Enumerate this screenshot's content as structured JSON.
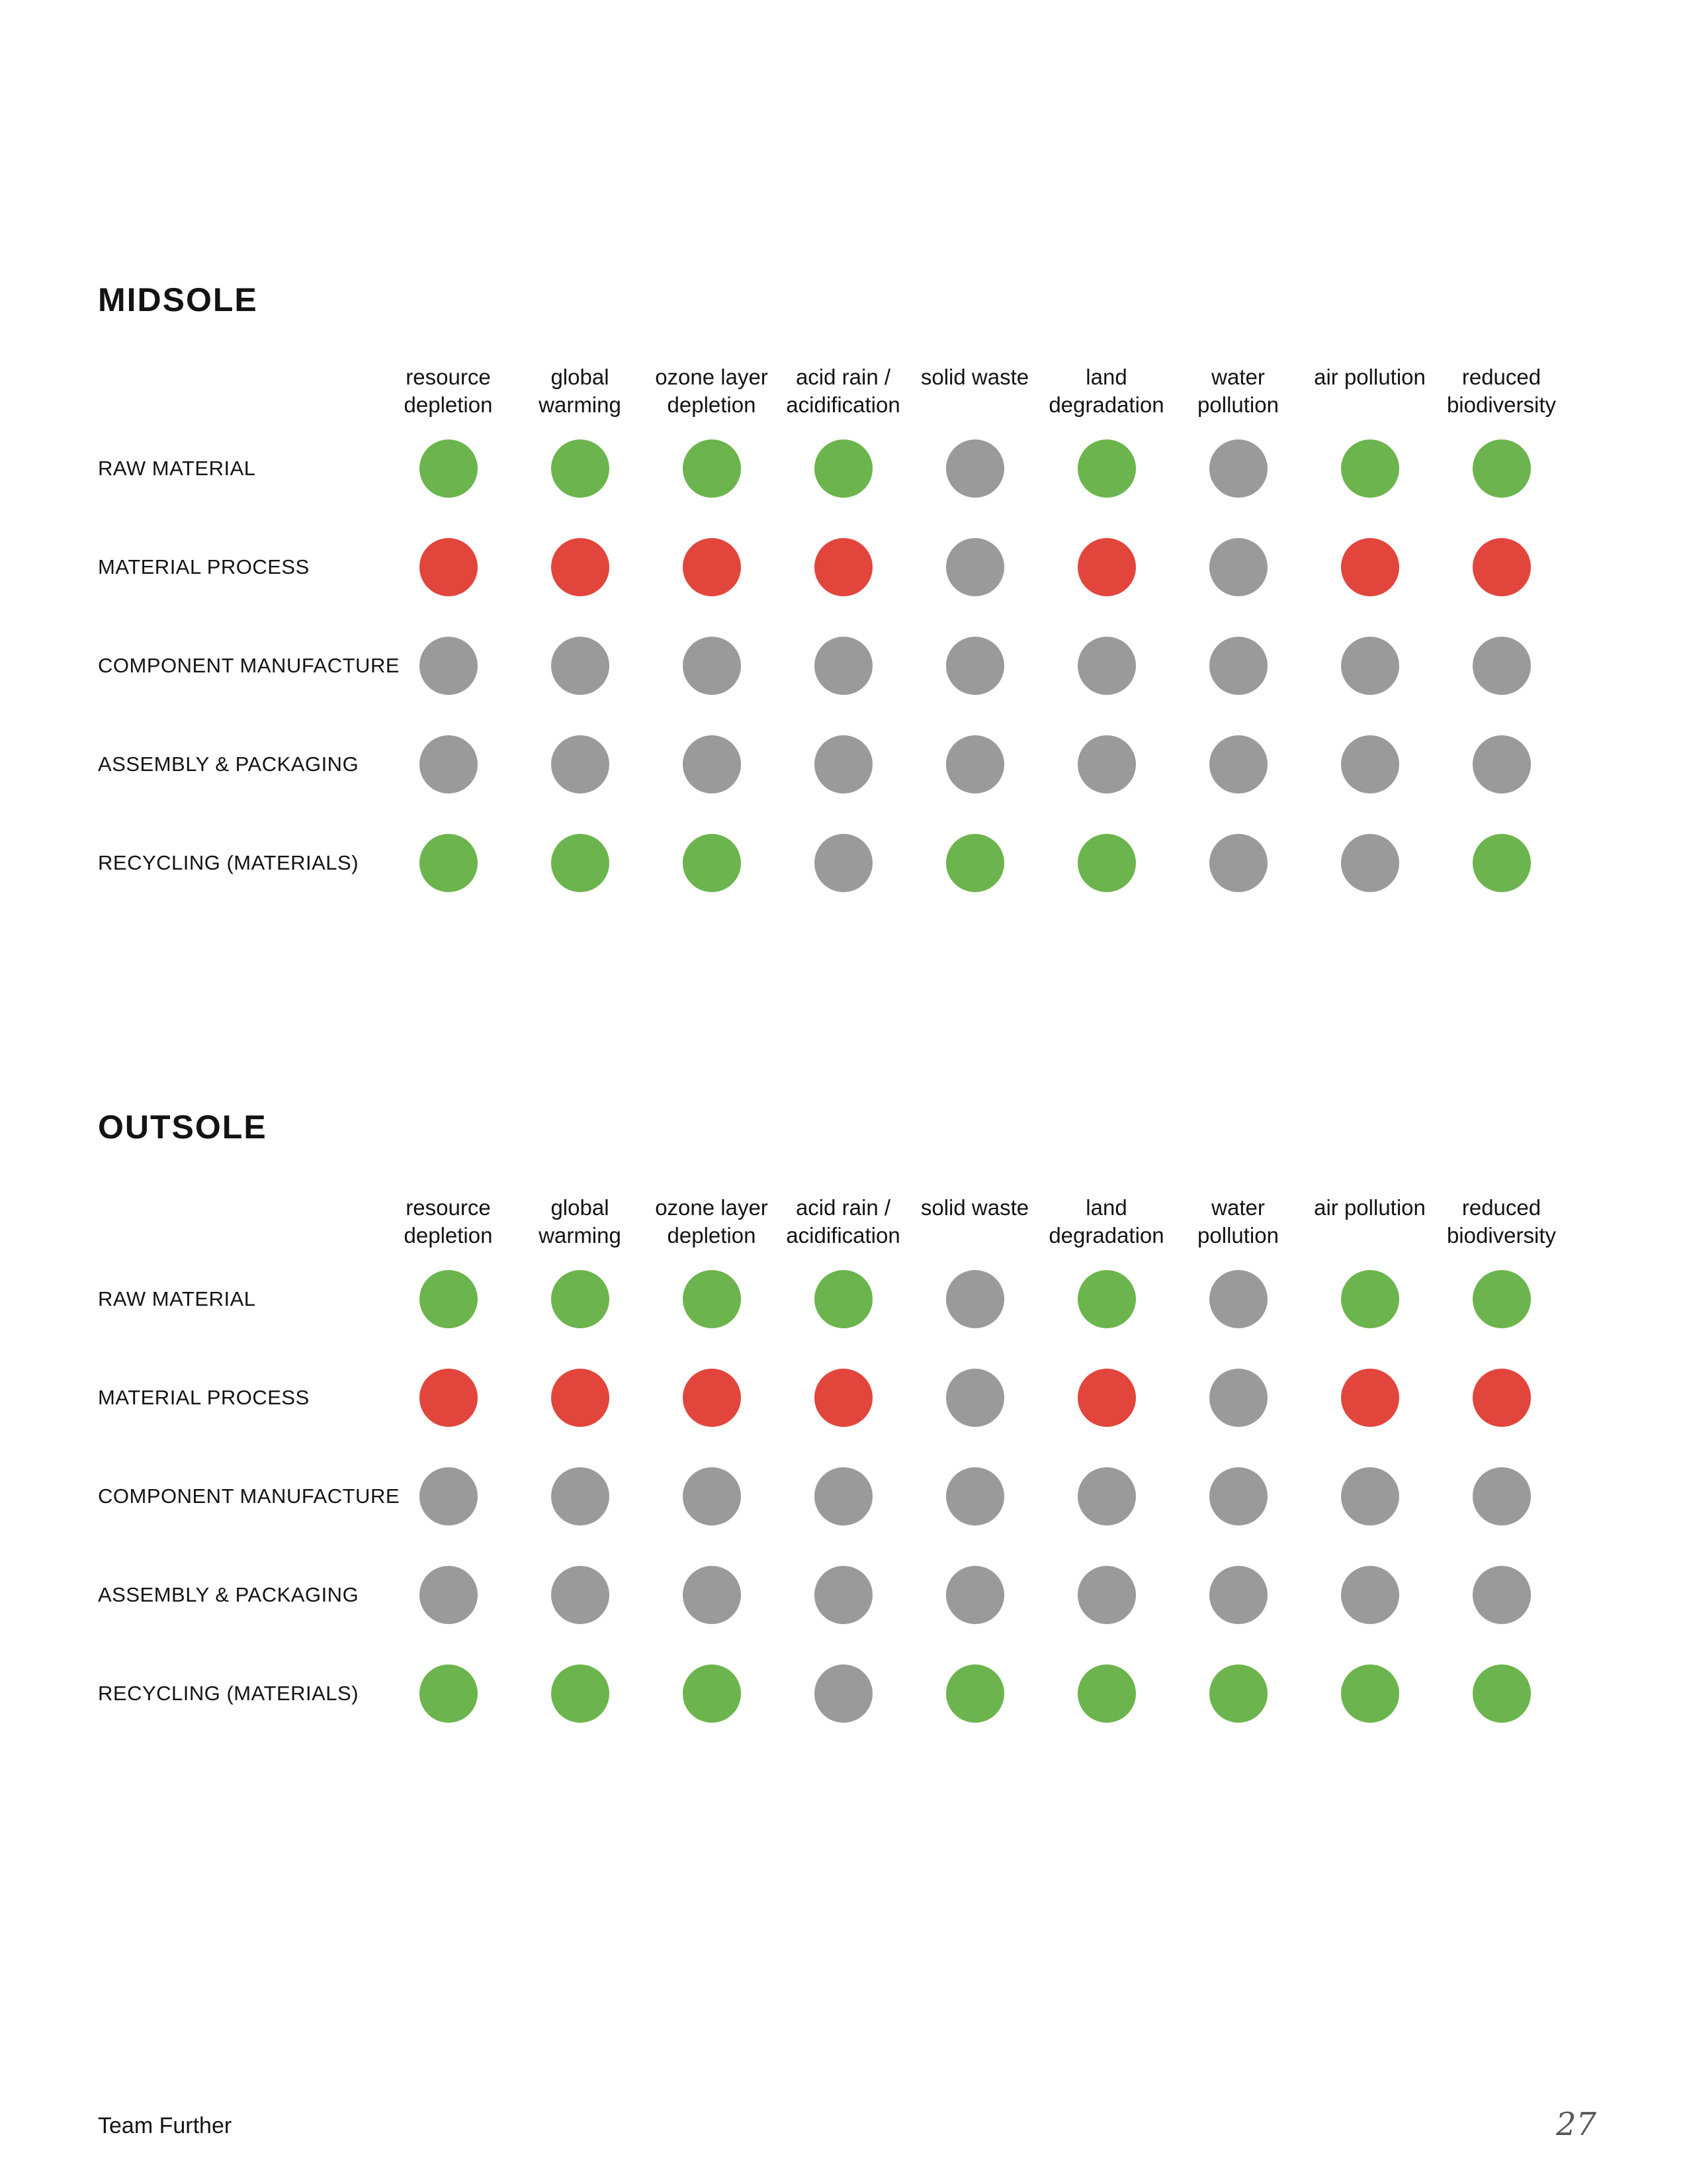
{
  "page": {
    "footer_left": "Team Further",
    "page_number": "27"
  },
  "colors": {
    "green": "#6CB44D",
    "red": "#E2453C",
    "gray": "#9A9A9A"
  },
  "chart_data": [
    {
      "type": "heatmap",
      "title": "MIDSOLE",
      "columns": [
        "resource\ndepletion",
        "global\nwarming",
        "ozone layer\ndepletion",
        "acid rain /\nacidification",
        "solid waste",
        "land\ndegradation",
        "water\npollution",
        "air pollution",
        "reduced\nbiodiversity"
      ],
      "rows": [
        "RAW MATERIAL",
        "MATERIAL PROCESS",
        "COMPONENT MANUFACTURE",
        "ASSEMBLY & PACKAGING",
        "RECYCLING (MATERIALS)"
      ],
      "values": [
        [
          "green",
          "green",
          "green",
          "green",
          "gray",
          "green",
          "gray",
          "green",
          "green"
        ],
        [
          "red",
          "red",
          "red",
          "red",
          "gray",
          "red",
          "gray",
          "red",
          "red"
        ],
        [
          "gray",
          "gray",
          "gray",
          "gray",
          "gray",
          "gray",
          "gray",
          "gray",
          "gray"
        ],
        [
          "gray",
          "gray",
          "gray",
          "gray",
          "gray",
          "gray",
          "gray",
          "gray",
          "gray"
        ],
        [
          "green",
          "green",
          "green",
          "gray",
          "green",
          "green",
          "gray",
          "gray",
          "green"
        ]
      ]
    },
    {
      "type": "heatmap",
      "title": "OUTSOLE",
      "columns": [
        "resource\ndepletion",
        "global\nwarming",
        "ozone layer\ndepletion",
        "acid rain /\nacidification",
        "solid waste",
        "land\ndegradation",
        "water\npollution",
        "air pollution",
        "reduced\nbiodiversity"
      ],
      "rows": [
        "RAW MATERIAL",
        "MATERIAL PROCESS",
        "COMPONENT MANUFACTURE",
        "ASSEMBLY & PACKAGING",
        "RECYCLING (MATERIALS)"
      ],
      "values": [
        [
          "green",
          "green",
          "green",
          "green",
          "gray",
          "green",
          "gray",
          "green",
          "green"
        ],
        [
          "red",
          "red",
          "red",
          "red",
          "gray",
          "red",
          "gray",
          "red",
          "red"
        ],
        [
          "gray",
          "gray",
          "gray",
          "gray",
          "gray",
          "gray",
          "gray",
          "gray",
          "gray"
        ],
        [
          "gray",
          "gray",
          "gray",
          "gray",
          "gray",
          "gray",
          "gray",
          "gray",
          "gray"
        ],
        [
          "green",
          "green",
          "green",
          "gray",
          "green",
          "green",
          "green",
          "green",
          "green"
        ]
      ]
    }
  ]
}
